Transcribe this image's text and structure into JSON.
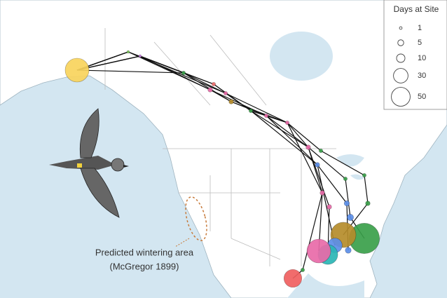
{
  "legend": {
    "title": "Days at Site",
    "entries": [
      1,
      5,
      10,
      30,
      50
    ]
  },
  "annotation": {
    "line1": "Predicted wintering area",
    "line2": "(McGregor 1899)"
  },
  "sites": [
    {
      "color": "#f8d45c",
      "days": 80
    },
    {
      "color": "#7bc95a",
      "days": 1
    },
    {
      "color": "#c77de0",
      "days": 1
    },
    {
      "color": "#3aa04a",
      "days": 2
    },
    {
      "color": "#e86aa8",
      "days": 3
    },
    {
      "color": "#ef7070",
      "days": 2
    },
    {
      "color": "#e86aa8",
      "days": 2
    },
    {
      "color": "#b58c2a",
      "days": 3
    },
    {
      "color": "#3aa04a",
      "days": 2
    },
    {
      "color": "#e86aa8",
      "days": 2
    },
    {
      "color": "#e86aa8",
      "days": 2
    },
    {
      "color": "#e86aa8",
      "days": 3
    },
    {
      "color": "#3aa04a",
      "days": 2
    },
    {
      "color": "#5b8ee8",
      "days": 3
    },
    {
      "color": "#e86aa8",
      "days": 3
    },
    {
      "color": "#e86aa8",
      "days": 3
    },
    {
      "color": "#3aa04a",
      "days": 2
    },
    {
      "color": "#3aa04a",
      "days": 2
    },
    {
      "color": "#5b8ee8",
      "days": 4
    },
    {
      "color": "#5b8ee8",
      "days": 6
    },
    {
      "color": "#3aa04a",
      "days": 3
    },
    {
      "color": "#3aa04a",
      "days": 130
    },
    {
      "color": "#b58c2a",
      "days": 90
    },
    {
      "color": "#5b8ee8",
      "days": 30
    },
    {
      "color": "#2ab5b5",
      "days": 55
    },
    {
      "color": "#e86aa8",
      "days": 80
    },
    {
      "color": "#f06060",
      "days": 45
    },
    {
      "color": "#3aa04a",
      "days": 2
    },
    {
      "color": "#5b8ee8",
      "days": 5
    }
  ]
}
